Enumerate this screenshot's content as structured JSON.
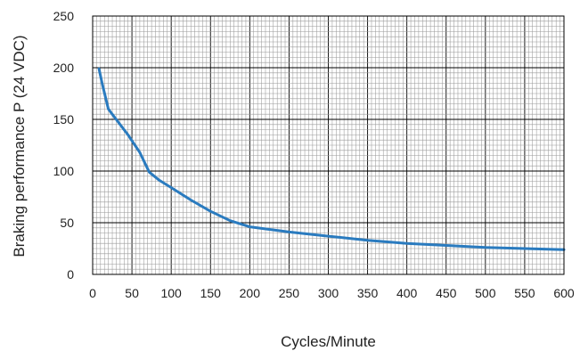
{
  "chart_data": {
    "type": "line",
    "title": "",
    "xlabel": "Cycles/Minute",
    "ylabel": "Braking performance P  (24 VDC)",
    "xlim": [
      0,
      600
    ],
    "ylim": [
      0,
      250
    ],
    "x_ticks": [
      0,
      50,
      100,
      150,
      200,
      250,
      300,
      350,
      400,
      450,
      500,
      550,
      600
    ],
    "y_ticks": [
      0,
      50,
      100,
      150,
      200,
      250
    ],
    "grid": true,
    "legend": "none",
    "colors": {
      "line": "#2a7bbf",
      "grid_minor": "#9a9a9a",
      "grid_major": "#000000"
    },
    "series": [
      {
        "x": [
          8,
          12,
          20,
          30,
          45,
          60,
          72,
          85,
          100,
          125,
          150,
          175,
          200,
          250,
          300,
          350,
          400,
          450,
          500,
          550,
          600
        ],
        "y": [
          199,
          185,
          160,
          150,
          135,
          118,
          99,
          91,
          84,
          72,
          61,
          52,
          46,
          41,
          37,
          33,
          30,
          28,
          26,
          25,
          24
        ]
      }
    ]
  }
}
